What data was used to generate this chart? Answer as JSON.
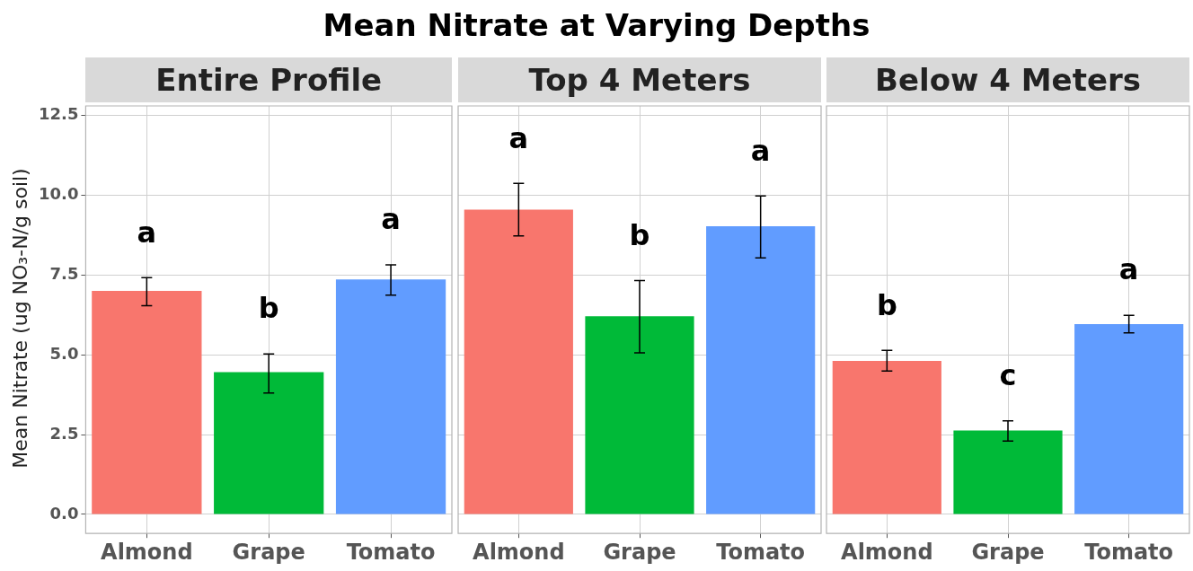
{
  "chart_data": [
    {
      "type": "bar",
      "title": "Mean Nitrate at Varying Depths",
      "subtitle": "Entire Profile",
      "ylabel": "Mean Nitrate (ug NO₃-N/g soil)",
      "categories": [
        "Almond",
        "Grape",
        "Tomato"
      ],
      "values": [
        7.0,
        4.46,
        7.36
      ],
      "colors": [
        "#f8766d",
        "#00ba38",
        "#619cff"
      ],
      "errors": [
        [
          6.54,
          7.42
        ],
        [
          3.8,
          5.03
        ],
        [
          6.87,
          7.82
        ]
      ],
      "ylim": [
        -0.6,
        12.8
      ],
      "yticks": [
        {
          "value": 0,
          "label": "0.0"
        },
        2.5,
        {
          "value": 5,
          "label": "5.0"
        },
        7.5,
        {
          "value": 10,
          "label": "10.0"
        },
        12.5
      ],
      "grid": true,
      "annotations": [
        "a",
        "b",
        "a"
      ]
    },
    {
      "type": "bar",
      "subtitle": "Top 4 Meters",
      "categories": [
        "Almond",
        "Grape",
        "Tomato"
      ],
      "values": [
        9.55,
        6.21,
        9.03
      ],
      "colors": [
        "#f8766d",
        "#00ba38",
        "#619cff"
      ],
      "errors": [
        [
          8.73,
          10.37
        ],
        [
          5.06,
          7.33
        ],
        [
          8.04,
          9.98
        ]
      ],
      "ylim": [
        -0.6,
        12.8
      ],
      "yticks": [
        0,
        2.5,
        5,
        7.5,
        10,
        12.5
      ],
      "grid": true,
      "tick_labels": "x",
      "annotations": [
        "a",
        "b",
        "a"
      ]
    },
    {
      "type": "bar",
      "subtitle": "Below 4 Meters",
      "categories": [
        "Almond",
        "Grape",
        "Tomato"
      ],
      "values": [
        4.81,
        2.63,
        5.96
      ],
      "colors": [
        "#f8766d",
        "#00ba38",
        "#619cff"
      ],
      "errors": [
        [
          4.49,
          5.14
        ],
        [
          2.3,
          2.93
        ],
        [
          5.69,
          6.24
        ]
      ],
      "ylim": [
        -0.6,
        12.8
      ],
      "yticks": [
        0,
        2.5,
        5,
        7.5,
        10,
        12.5
      ],
      "grid": true,
      "tick_labels": "x",
      "annotations": [
        "b",
        "c",
        "a"
      ]
    }
  ]
}
